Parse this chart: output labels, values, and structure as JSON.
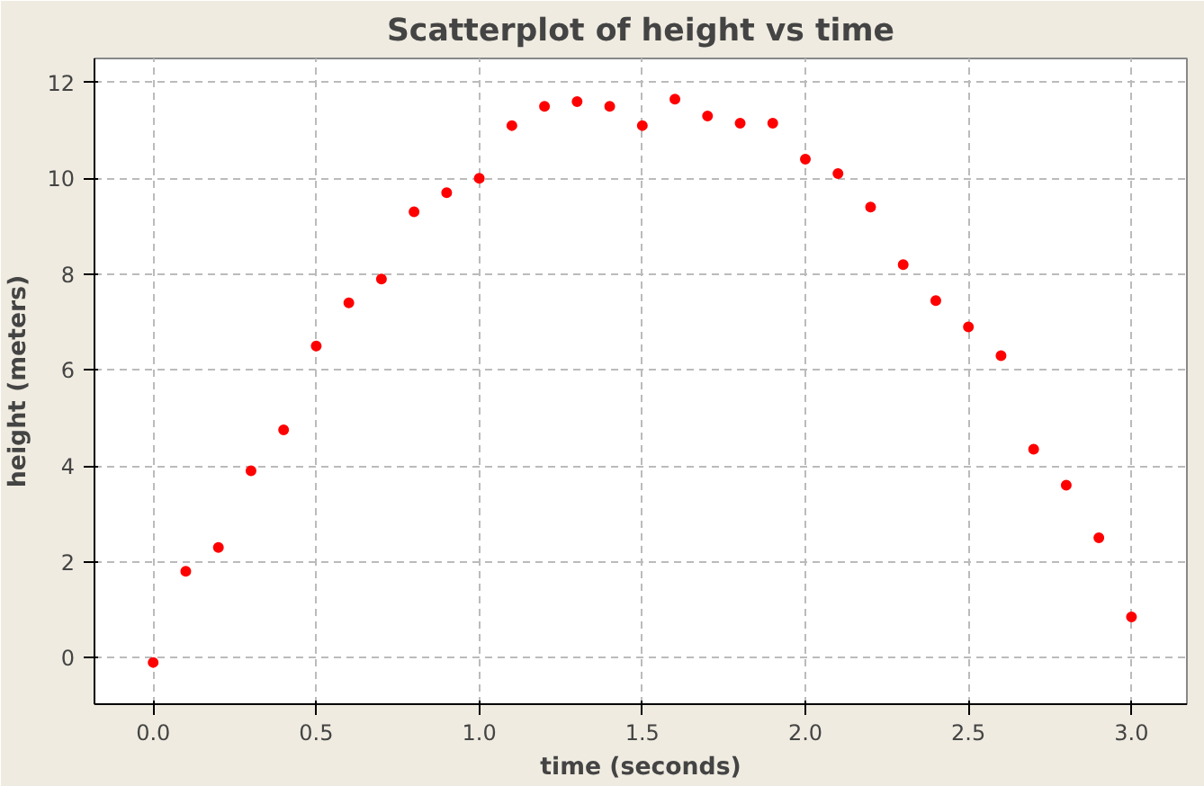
{
  "chart_data": {
    "type": "scatter",
    "title": "Scatterplot of height vs time",
    "xlabel": "time (seconds)",
    "ylabel": "height (meters)",
    "x": [
      0.0,
      0.1,
      0.2,
      0.3,
      0.4,
      0.5,
      0.6,
      0.7,
      0.8,
      0.9,
      1.0,
      1.1,
      1.2,
      1.3,
      1.4,
      1.5,
      1.6,
      1.7,
      1.8,
      1.9,
      2.0,
      2.1,
      2.2,
      2.3,
      2.4,
      2.5,
      2.6,
      2.7,
      2.8,
      2.9,
      3.0
    ],
    "series": [
      {
        "color": "#ff0000",
        "values": [
          -0.1,
          1.8,
          2.3,
          3.9,
          4.75,
          6.5,
          7.4,
          7.9,
          9.3,
          9.7,
          10.0,
          11.1,
          11.5,
          11.6,
          11.5,
          11.1,
          11.65,
          11.3,
          11.15,
          11.15,
          10.4,
          10.1,
          9.4,
          8.2,
          7.45,
          6.9,
          6.3,
          4.35,
          3.6,
          2.5,
          0.85
        ]
      }
    ],
    "xlim": [
      -0.18,
      3.17
    ],
    "ylim": [
      -0.97,
      12.5
    ],
    "xticks": [
      {
        "value": 0,
        "label": "0.0"
      },
      {
        "value": 0.5,
        "label": "0.5"
      },
      {
        "value": 1,
        "label": "1.0"
      },
      {
        "value": 1.5,
        "label": "1.5"
      },
      {
        "value": 2,
        "label": "2.0"
      },
      {
        "value": 2.5,
        "label": "2.5"
      },
      {
        "value": 3,
        "label": "3.0"
      }
    ],
    "yticks": [
      0,
      2,
      4,
      6,
      8,
      10,
      12
    ],
    "grid": true,
    "marker": "circle"
  }
}
